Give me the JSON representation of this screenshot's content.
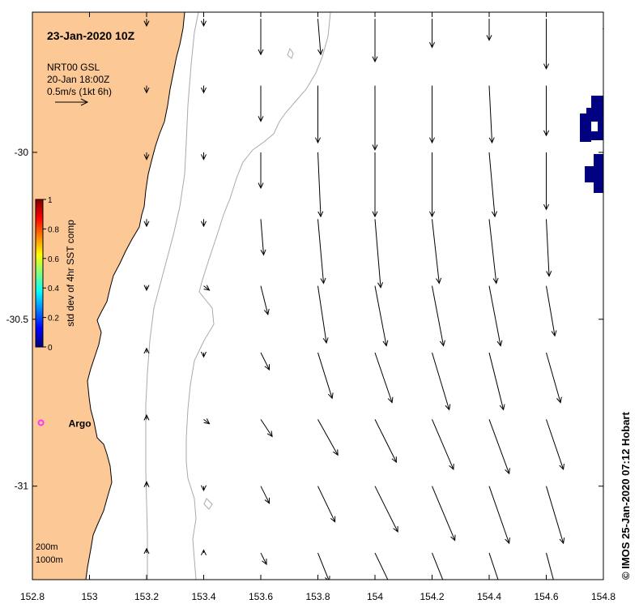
{
  "title": "23-Jan-2020 10Z",
  "product": {
    "line1": "NRT00 GSL",
    "line2": "20-Jan 18:00Z",
    "scale": "0.5m/s (1kt 6h)"
  },
  "colorbar": {
    "label": "std dev of 4hr SST comp",
    "ticks": [
      "1",
      "0.8",
      "0.6",
      "0.4",
      "0.2",
      "0"
    ],
    "colors": [
      "#00007f",
      "#0000ff",
      "#007fff",
      "#00ffff",
      "#7fff7f",
      "#ffff00",
      "#ff7f00",
      "#ff0000",
      "#7f0000"
    ]
  },
  "argo": {
    "label": "Argo",
    "lon": 152.83,
    "lat": -30.81,
    "color": "#ff33ff"
  },
  "isobaths": [
    "200m",
    "1000m"
  ],
  "x_ticks": [
    "152.8",
    "153",
    "153.2",
    "153.4",
    "153.6",
    "153.8",
    "154",
    "154.2",
    "154.4",
    "154.6",
    "154.8"
  ],
  "y_ticks": [
    "-30",
    "-30.5",
    "-31"
  ],
  "credit": "© IMOS 25-Jan-2020 07:12 Hobart",
  "colors": {
    "land": "#fcc896",
    "coast": "#000000",
    "isobath": "#aaaaaa",
    "sst": "#000080",
    "arrow": "#000000"
  },
  "chart_data": {
    "type": "vector-field",
    "xlim": [
      152.8,
      154.8
    ],
    "ylim": [
      -31.28,
      -29.58
    ],
    "grid_lon": [
      153.2,
      153.4,
      153.6,
      153.8,
      154.0,
      154.2,
      154.4,
      154.6,
      154.8
    ],
    "grid_lat": [
      -29.6,
      -29.8,
      -30.0,
      -30.2,
      -30.4,
      -30.6,
      -30.8,
      -31.0,
      -31.2
    ],
    "u_components_m_s": [
      [
        0.0,
        0.0,
        0.0,
        0.02,
        0.0,
        0.0,
        0.0,
        0.0,
        0.02
      ],
      [
        0.0,
        0.0,
        0.0,
        0.0,
        0.0,
        0.0,
        0.02,
        0.0,
        0.0
      ],
      [
        0.0,
        0.0,
        0.0,
        0.02,
        0.0,
        0.0,
        0.04,
        0.0,
        0.0
      ],
      [
        0.0,
        0.0,
        0.02,
        0.04,
        0.04,
        0.05,
        0.05,
        0.02,
        0.0
      ],
      [
        0.0,
        0.04,
        0.05,
        0.06,
        0.08,
        0.08,
        0.08,
        0.06,
        0.0
      ],
      [
        0.0,
        0.0,
        0.06,
        0.1,
        0.12,
        0.12,
        0.1,
        0.1,
        0.0
      ],
      [
        0.0,
        0.04,
        0.08,
        0.14,
        0.15,
        0.15,
        0.14,
        0.12,
        0.0
      ],
      [
        0.0,
        0.0,
        0.06,
        0.12,
        0.16,
        0.16,
        0.14,
        0.12,
        0.0
      ],
      [
        0.0,
        0.0,
        0.04,
        0.08,
        0.12,
        0.12,
        0.1,
        0.08,
        0.0
      ]
    ],
    "v_components_m_s": [
      [
        -0.05,
        -0.05,
        -0.25,
        -0.25,
        -0.3,
        -0.2,
        -0.15,
        -0.35,
        -0.1
      ],
      [
        -0.05,
        -0.05,
        -0.25,
        -0.4,
        -0.45,
        -0.4,
        -0.4,
        -0.35,
        0.0
      ],
      [
        -0.05,
        -0.05,
        -0.25,
        -0.45,
        -0.45,
        -0.45,
        -0.45,
        -0.4,
        0.0
      ],
      [
        -0.05,
        -0.05,
        -0.25,
        -0.45,
        -0.48,
        -0.45,
        -0.45,
        -0.4,
        0.0
      ],
      [
        -0.03,
        -0.03,
        -0.2,
        -0.4,
        -0.42,
        -0.42,
        -0.42,
        -0.35,
        0.0
      ],
      [
        0.03,
        -0.03,
        -0.12,
        -0.32,
        -0.35,
        -0.4,
        -0.4,
        -0.35,
        0.0
      ],
      [
        0.03,
        -0.03,
        -0.12,
        -0.25,
        -0.3,
        -0.35,
        -0.38,
        -0.35,
        0.0
      ],
      [
        0.03,
        -0.03,
        -0.12,
        -0.25,
        -0.32,
        -0.38,
        -0.4,
        -0.4,
        0.0
      ],
      [
        0.03,
        0.02,
        -0.08,
        -0.2,
        -0.25,
        -0.3,
        -0.3,
        -0.3,
        0.0
      ]
    ],
    "arrow_scale_reference_m_s": 0.5
  }
}
